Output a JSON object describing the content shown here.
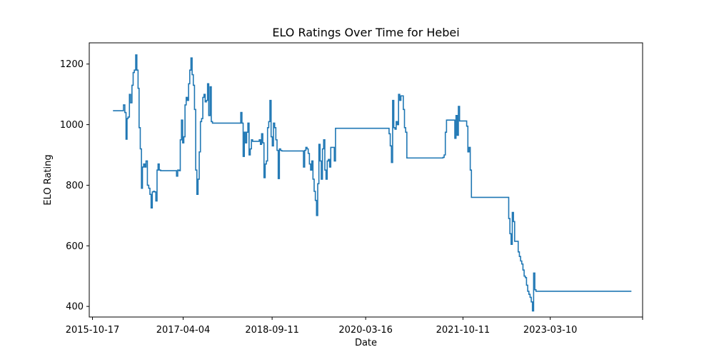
{
  "chart_data": {
    "type": "line",
    "title": "ELO Ratings Over Time for Hebei",
    "xlabel": "Date",
    "ylabel": "ELO Rating",
    "x_tick_labels": [
      "2015-10-17",
      "2017-04-04",
      "2018-09-11",
      "2020-03-16",
      "2021-10-11",
      "2023-03-10",
      ""
    ],
    "y_tick_labels": [
      "400",
      "600",
      "800",
      "1000",
      "1200"
    ],
    "x_ticks": [
      "2015-10-17",
      "2017-04-04",
      "2018-09-11",
      "2020-03-16",
      "2021-10-11",
      "2023-03-10",
      "2024-09-05"
    ],
    "y_ticks": [
      400,
      600,
      800,
      1000,
      1200
    ],
    "xlim": [
      "2015-09-28",
      "2024-09-05"
    ],
    "ylim": [
      365,
      1270
    ],
    "grid": false,
    "legend": false,
    "line_color": "#1f77b4",
    "series": [
      {
        "x": [
          "2016-02-15",
          "2016-04-10",
          "2016-04-17",
          "2016-04-25",
          "2016-05-02",
          "2016-05-08",
          "2016-05-14",
          "2016-05-22",
          "2016-05-29",
          "2016-06-06",
          "2016-06-13",
          "2016-06-20",
          "2016-06-28",
          "2016-07-05",
          "2016-07-12",
          "2016-07-18",
          "2016-07-25",
          "2016-08-01",
          "2016-08-07",
          "2016-08-14",
          "2016-08-21",
          "2016-08-28",
          "2016-09-05",
          "2016-09-13",
          "2016-09-20",
          "2016-09-27",
          "2016-10-04",
          "2016-10-11",
          "2016-10-18",
          "2016-10-25",
          "2016-11-01",
          "2016-11-07",
          "2016-11-14",
          "2016-11-22",
          "2016-12-01",
          "2017-02-10",
          "2017-02-18",
          "2017-02-24",
          "2017-03-03",
          "2017-03-11",
          "2017-03-18",
          "2017-03-25",
          "2017-04-01",
          "2017-04-08",
          "2017-04-15",
          "2017-04-22",
          "2017-04-29",
          "2017-05-06",
          "2017-05-13",
          "2017-05-20",
          "2017-05-27",
          "2017-06-03",
          "2017-06-10",
          "2017-06-17",
          "2017-06-24",
          "2017-07-01",
          "2017-07-08",
          "2017-07-15",
          "2017-07-22",
          "2017-07-29",
          "2017-08-05",
          "2017-08-12",
          "2017-08-19",
          "2017-08-26",
          "2017-09-02",
          "2017-09-10",
          "2017-09-17",
          "2017-09-24",
          "2017-10-01",
          "2017-10-08",
          "2017-10-15",
          "2017-10-22",
          "2017-10-29",
          "2017-11-05",
          "2018-03-03",
          "2018-03-10",
          "2018-03-17",
          "2018-03-24",
          "2018-03-31",
          "2018-04-07",
          "2018-04-14",
          "2018-04-21",
          "2018-04-28",
          "2018-05-05",
          "2018-05-12",
          "2018-05-19",
          "2018-06-20",
          "2018-06-27",
          "2018-07-04",
          "2018-07-11",
          "2018-07-18",
          "2018-07-25",
          "2018-08-01",
          "2018-08-08",
          "2018-08-15",
          "2018-08-22",
          "2018-08-29",
          "2018-09-05",
          "2018-09-12",
          "2018-09-19",
          "2018-09-26",
          "2018-10-03",
          "2018-10-10",
          "2018-10-17",
          "2018-10-24",
          "2018-10-31",
          "2018-11-07",
          "2019-03-01",
          "2019-03-08",
          "2019-03-15",
          "2019-03-22",
          "2019-03-29",
          "2019-04-05",
          "2019-04-12",
          "2019-04-19",
          "2019-04-26",
          "2019-05-03",
          "2019-05-10",
          "2019-05-17",
          "2019-05-24",
          "2019-05-31",
          "2019-06-07",
          "2019-06-14",
          "2019-06-21",
          "2019-06-28",
          "2019-07-05",
          "2019-07-12",
          "2019-07-19",
          "2019-07-26",
          "2019-08-02",
          "2019-08-09",
          "2019-08-16",
          "2019-08-23",
          "2019-08-30",
          "2019-09-06",
          "2019-09-13",
          "2019-09-20",
          "2019-09-27",
          "2019-10-04",
          "2019-10-11",
          "2019-10-18",
          "2019-10-25",
          "2019-11-01",
          "2019-11-08",
          "2019-11-15",
          "2019-11-22",
          "2019-11-29",
          "2020-07-25",
          "2020-08-01",
          "2020-08-08",
          "2020-08-15",
          "2020-08-22",
          "2020-08-29",
          "2020-09-05",
          "2020-09-12",
          "2020-09-19",
          "2020-09-26",
          "2020-10-03",
          "2020-10-10",
          "2020-10-17",
          "2020-10-24",
          "2020-10-31",
          "2020-11-07",
          "2020-11-14",
          "2020-11-21",
          "2021-04-20",
          "2021-04-27",
          "2021-05-04",
          "2021-05-11",
          "2021-05-18",
          "2021-05-25",
          "2021-06-01",
          "2021-06-08",
          "2021-06-15",
          "2021-06-22",
          "2021-06-29",
          "2021-07-06",
          "2021-07-13",
          "2021-07-20",
          "2021-07-27",
          "2021-08-03",
          "2021-08-10",
          "2021-08-17",
          "2021-08-24",
          "2021-08-31",
          "2021-09-07",
          "2021-09-14",
          "2021-09-21",
          "2021-09-28",
          "2021-10-05",
          "2021-10-12",
          "2021-10-19",
          "2021-10-26",
          "2021-11-02",
          "2021-11-09",
          "2021-11-16",
          "2021-11-23",
          "2021-11-30",
          "2021-12-07",
          "2021-12-14",
          "2021-12-21",
          "2021-12-28",
          "2022-06-03",
          "2022-06-10",
          "2022-06-17",
          "2022-06-24",
          "2022-07-01",
          "2022-07-08",
          "2022-07-15",
          "2022-07-22",
          "2022-07-29",
          "2022-08-05",
          "2022-08-12",
          "2022-08-19",
          "2022-08-26",
          "2022-09-02",
          "2022-09-09",
          "2022-09-16",
          "2022-09-23",
          "2022-09-30",
          "2022-10-07",
          "2022-10-14",
          "2022-10-21",
          "2022-10-28",
          "2022-11-04",
          "2022-11-11",
          "2022-11-18",
          "2022-11-25",
          "2022-12-02",
          "2022-12-09",
          "2022-12-16",
          "2022-12-23",
          "2022-12-30",
          "2023-01-06",
          "2023-01-13",
          "2023-01-20",
          "2024-07-01"
        ],
        "y": [
          1046,
          1046,
          1065,
          1040,
          952,
          1020,
          1025,
          1100,
          1072,
          1130,
          1172,
          1180,
          1230,
          1180,
          1120,
          990,
          920,
          790,
          860,
          870,
          860,
          880,
          800,
          790,
          770,
          725,
          778,
          780,
          778,
          748,
          850,
          870,
          850,
          848,
          848,
          848,
          848,
          830,
          850,
          848,
          950,
          1015,
          940,
          960,
          1065,
          1090,
          1080,
          1135,
          1180,
          1220,
          1165,
          1130,
          1050,
          850,
          770,
          820,
          910,
          1010,
          1020,
          1090,
          1100,
          1075,
          1080,
          1135,
          1030,
          1125,
          1010,
          1005,
          1005,
          1005,
          1005,
          1005,
          1005,
          1005,
          1005,
          1040,
          1005,
          895,
          975,
          940,
          975,
          1005,
          900,
          920,
          950,
          945,
          945,
          950,
          935,
          970,
          940,
          825,
          870,
          880,
          990,
          1010,
          1080,
          960,
          930,
          1005,
          990,
          950,
          915,
          822,
          920,
          915,
          913,
          913,
          913,
          860,
          915,
          925,
          920,
          905,
          870,
          850,
          880,
          820,
          780,
          750,
          700,
          805,
          935,
          880,
          820,
          920,
          950,
          850,
          820,
          880,
          885,
          860,
          925,
          925,
          925,
          880,
          988,
          988,
          988,
          988,
          988,
          988,
          988,
          988,
          988,
          988,
          988,
          988,
          970,
          930,
          875,
          1080,
          990,
          985,
          1010,
          1000,
          1100,
          1080,
          1095,
          1095,
          1050,
          990,
          975,
          890,
          890,
          890,
          890,
          890,
          890,
          890,
          890,
          890,
          890,
          892,
          900,
          975,
          1015,
          1015,
          1015,
          1015,
          1015,
          1015,
          1015,
          955,
          1030,
          965,
          1060,
          1012,
          1012,
          1012,
          1012,
          1012,
          1012,
          995,
          910,
          925,
          850,
          760,
          760,
          760,
          760,
          760,
          760,
          760,
          760,
          760,
          760,
          690,
          640,
          605,
          710,
          680,
          615,
          615,
          615,
          580,
          565,
          550,
          540,
          520,
          500,
          495,
          470,
          450,
          440,
          430,
          415,
          385,
          510,
          455,
          450,
          450,
          450,
          450,
          450,
          450,
          450
        ]
      }
    ]
  }
}
